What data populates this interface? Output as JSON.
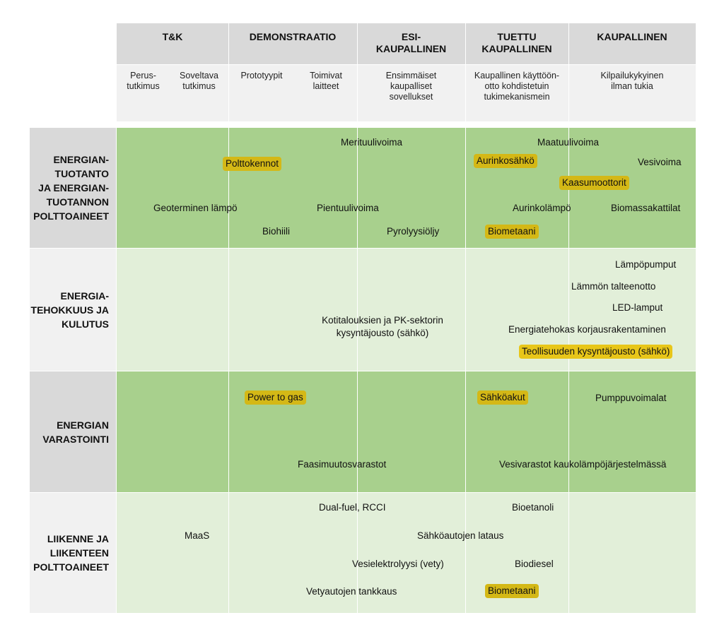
{
  "stages": [
    {
      "label": "T&K"
    },
    {
      "label": "DEMONSTRAATIO"
    },
    {
      "label": "ESI-\nKAUPALLINEN"
    },
    {
      "label": "TUETTU\nKAUPALLINEN"
    },
    {
      "label": "KAUPALLINEN"
    }
  ],
  "substages": [
    {
      "label": "Perus-\ntutkimus"
    },
    {
      "label": "Soveltava\ntutkimus"
    },
    {
      "label": "Prototyypit"
    },
    {
      "label": "Toimivat\nlaitteet"
    },
    {
      "label": "Ensimmäiset\nkaupalliset\nsovellukset"
    },
    {
      "label": "Kaupallinen käyttöön-\notto kohdistetuin\ntukimekanismein"
    },
    {
      "label": "Kilpailukykyinen\nilman tukia"
    }
  ],
  "rows": [
    {
      "label": "ENERGIAN-\nTUOTANTO\nJA ENERGIAN-\nTUOTANNON\nPOLTTOAINEET"
    },
    {
      "label": "ENERGIA-\nTEHOKKUUS JA\nKULUTUS"
    },
    {
      "label": "ENERGIAN\nVARASTOINTI"
    },
    {
      "label": "LIIKENNE JA\nLIIKENTEEN\nPOLTTOAINEET"
    }
  ],
  "items": {
    "r1": {
      "merituulivoima": "Merituulivoima",
      "maatuulivoima": "Maatuulivoima",
      "polttokennot": "Polttokennot",
      "aurinkosahko": "Aurinkosähkö",
      "vesivoima": "Vesivoima",
      "kaasumoottorit": "Kaasumoottorit",
      "geoterminen": "Geoterminen lämpö",
      "pientuulivoima": "Pientuulivoima",
      "aurinkolampo": "Aurinkolämpö",
      "biomassakattilat": "Biomassakattilat",
      "biohiili": "Biohiili",
      "pyrolyysioljy": "Pyrolyysiöljy",
      "biometaani": "Biometaani"
    },
    "r2": {
      "lampopumput": "Lämpöpumput",
      "talteenotto": "Lämmön talteenotto",
      "led": "LED-lamput",
      "kotitalous": "Kotitalouksien ja PK-sektorin\nkysyntäjousto (sähkö)",
      "korjausrakentaminen": "Energiatehokas korjausrakentaminen",
      "teollisuus": "Teollisuuden kysyntäjousto (sähkö)"
    },
    "r3": {
      "power_to_gas": "Power to gas",
      "sahkoakut": "Sähköakut",
      "pumppuvoimalat": "Pumppuvoimalat",
      "faasimuutos": "Faasimuutosvarastot",
      "vesivarastot": "Vesivarastot kaukolämpöjärjestelmässä"
    },
    "r4": {
      "dualfuel": "Dual-fuel, RCCI",
      "bioetanoli": "Bioetanoli",
      "maas": "MaaS",
      "lataus": "Sähköautojen lataus",
      "vesielektrolyysi": "Vesielektrolyysi (vety)",
      "biodiesel": "Biodiesel",
      "tankkaus": "Vetyautojen tankkaus",
      "biometaani": "Biometaani"
    }
  },
  "colors": {
    "header_dark": "#d9d9d9",
    "header_light": "#f1f1f1",
    "green_dark": "#a8d08d",
    "green_light": "#e2efd9",
    "highlight": "#d4b816"
  }
}
